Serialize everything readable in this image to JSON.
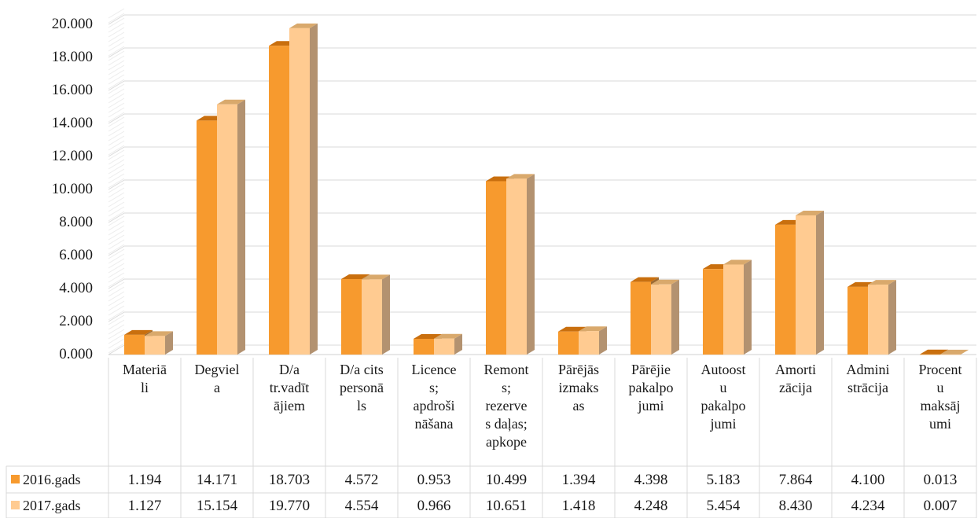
{
  "chart_data": {
    "type": "bar",
    "categories": [
      [
        "Materiā",
        "li"
      ],
      [
        "Degviel",
        "a"
      ],
      [
        "D/a",
        "tr.vadīt",
        "ājiem"
      ],
      [
        "D/a cits",
        "personā",
        "ls"
      ],
      [
        "Licence",
        "s;",
        "apdroši",
        "nāšana"
      ],
      [
        "Remont",
        "s;",
        "rezerve",
        "s daļas;",
        "apkope"
      ],
      [
        "Pārējās",
        "izmaks",
        "as"
      ],
      [
        "Pārējie",
        "pakalpo",
        "jumi"
      ],
      [
        "Autoost",
        "u",
        "pakalpo",
        "jumi"
      ],
      [
        "Amorti",
        "zācija"
      ],
      [
        "Admini",
        "strācija"
      ],
      [
        "Procent",
        "u",
        "maksāj",
        "umi"
      ]
    ],
    "series": [
      {
        "name": "2016.gads",
        "color": "#F79A2E",
        "values": [
          1.194,
          14.171,
          18.703,
          4.572,
          0.953,
          10.499,
          1.394,
          4.398,
          5.183,
          7.864,
          4.1,
          0.013
        ],
        "labels": [
          "1.194",
          "14.171",
          "18.703",
          "4.572",
          "0.953",
          "10.499",
          "1.394",
          "4.398",
          "5.183",
          "7.864",
          "4.100",
          "0.013"
        ]
      },
      {
        "name": "2017.gads",
        "color": "#FFCB91",
        "values": [
          1.127,
          15.154,
          19.77,
          4.554,
          0.966,
          10.651,
          1.418,
          4.248,
          5.454,
          8.43,
          4.234,
          0.007
        ],
        "labels": [
          "1.127",
          "15.154",
          "19.770",
          "4.554",
          "0.966",
          "10.651",
          "1.418",
          "4.248",
          "5.454",
          "8.430",
          "4.234",
          "0.007"
        ]
      }
    ],
    "y_ticks": [
      "0.000",
      "2.000",
      "4.000",
      "6.000",
      "8.000",
      "10.000",
      "12.000",
      "14.000",
      "16.000",
      "18.000",
      "20.000"
    ],
    "ylim": [
      0,
      20
    ],
    "grid": true,
    "legend": "data-table",
    "style": "3d-clustered-column"
  }
}
